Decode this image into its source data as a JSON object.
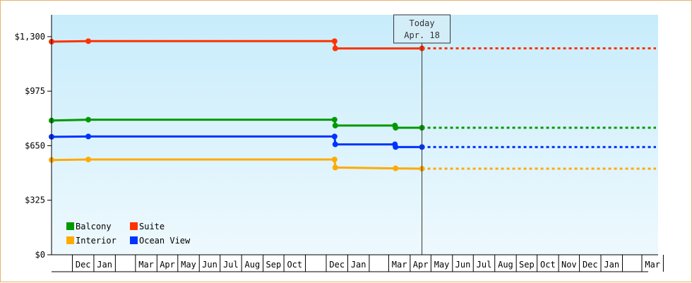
{
  "chart_data": {
    "type": "line",
    "title": "",
    "xlabel": "",
    "ylabel": "",
    "ylim": [
      0,
      1430
    ],
    "y_ticks": [
      0,
      325,
      650,
      975,
      1300
    ],
    "y_tick_labels": [
      "$0",
      "$325",
      "$650",
      "$975",
      "$1,300"
    ],
    "x_domain": [
      "2011-11-01",
      "2013-11-01"
    ],
    "x_month_labels": [
      {
        "label": "Dec",
        "start": "2011-12-01"
      },
      {
        "label": "Jan",
        "start": "2012-01-01"
      },
      {
        "label": "Mar",
        "start": "2012-03-01"
      },
      {
        "label": "Apr",
        "start": "2012-04-01"
      },
      {
        "label": "May",
        "start": "2012-05-01"
      },
      {
        "label": "Jun",
        "start": "2012-06-01"
      },
      {
        "label": "Jul",
        "start": "2012-07-01"
      },
      {
        "label": "Aug",
        "start": "2012-08-01"
      },
      {
        "label": "Sep",
        "start": "2012-09-01"
      },
      {
        "label": "Oct",
        "start": "2012-10-01"
      },
      {
        "label": "Dec",
        "start": "2012-12-01"
      },
      {
        "label": "Jan",
        "start": "2013-01-01"
      },
      {
        "label": "Mar",
        "start": "2013-03-01"
      },
      {
        "label": "Apr",
        "start": "2013-04-01"
      },
      {
        "label": "May",
        "start": "2013-05-01"
      },
      {
        "label": "Jun",
        "start": "2013-06-01"
      },
      {
        "label": "Jul",
        "start": "2013-07-01"
      },
      {
        "label": "Aug",
        "start": "2013-08-01"
      },
      {
        "label": "Sep",
        "start": "2013-09-01"
      },
      {
        "label": "Oct",
        "start": "2013-10-01"
      },
      {
        "label": "Nov",
        "start": "2013-11-01"
      },
      {
        "label": "Dec",
        "start": "2013-12-01"
      },
      {
        "label": "Jan",
        "start": "2014-01-01"
      },
      {
        "label": "Mar",
        "start": "2014-03-01"
      }
    ],
    "today": {
      "label_line1": "Today",
      "label_line2": "Apr. 18",
      "date": "2013-04-18"
    },
    "legend_position": "bottom-left",
    "grid": false,
    "series": [
      {
        "name": "Balcony",
        "color": "#009900",
        "points": [
          {
            "date": "2011-11-01",
            "value": 800
          },
          {
            "date": "2011-12-24",
            "value": 805
          },
          {
            "date": "2012-12-13",
            "value": 805
          },
          {
            "date": "2012-12-14",
            "value": 770
          },
          {
            "date": "2013-03-10",
            "value": 770
          },
          {
            "date": "2013-03-11",
            "value": 757
          },
          {
            "date": "2013-04-18",
            "value": 757
          }
        ],
        "projection_end": "2014-04-01"
      },
      {
        "name": "Suite",
        "color": "#ff3300",
        "points": [
          {
            "date": "2011-11-01",
            "value": 1270
          },
          {
            "date": "2011-12-24",
            "value": 1273
          },
          {
            "date": "2012-12-13",
            "value": 1273
          },
          {
            "date": "2012-12-14",
            "value": 1230
          },
          {
            "date": "2013-04-18",
            "value": 1230
          }
        ],
        "projection_end": "2014-04-01"
      },
      {
        "name": "Interior",
        "color": "#ffaa00",
        "points": [
          {
            "date": "2011-11-01",
            "value": 565
          },
          {
            "date": "2011-12-24",
            "value": 568
          },
          {
            "date": "2012-12-13",
            "value": 568
          },
          {
            "date": "2012-12-14",
            "value": 520
          },
          {
            "date": "2013-03-11",
            "value": 515
          },
          {
            "date": "2013-04-18",
            "value": 513
          }
        ],
        "projection_end": "2014-04-01"
      },
      {
        "name": "Ocean View",
        "color": "#0033ff",
        "points": [
          {
            "date": "2011-11-01",
            "value": 703
          },
          {
            "date": "2011-12-24",
            "value": 705
          },
          {
            "date": "2012-12-13",
            "value": 705
          },
          {
            "date": "2012-12-14",
            "value": 658
          },
          {
            "date": "2013-03-10",
            "value": 658
          },
          {
            "date": "2013-03-11",
            "value": 642
          },
          {
            "date": "2013-04-18",
            "value": 642
          }
        ],
        "projection_end": "2014-04-01"
      }
    ]
  }
}
